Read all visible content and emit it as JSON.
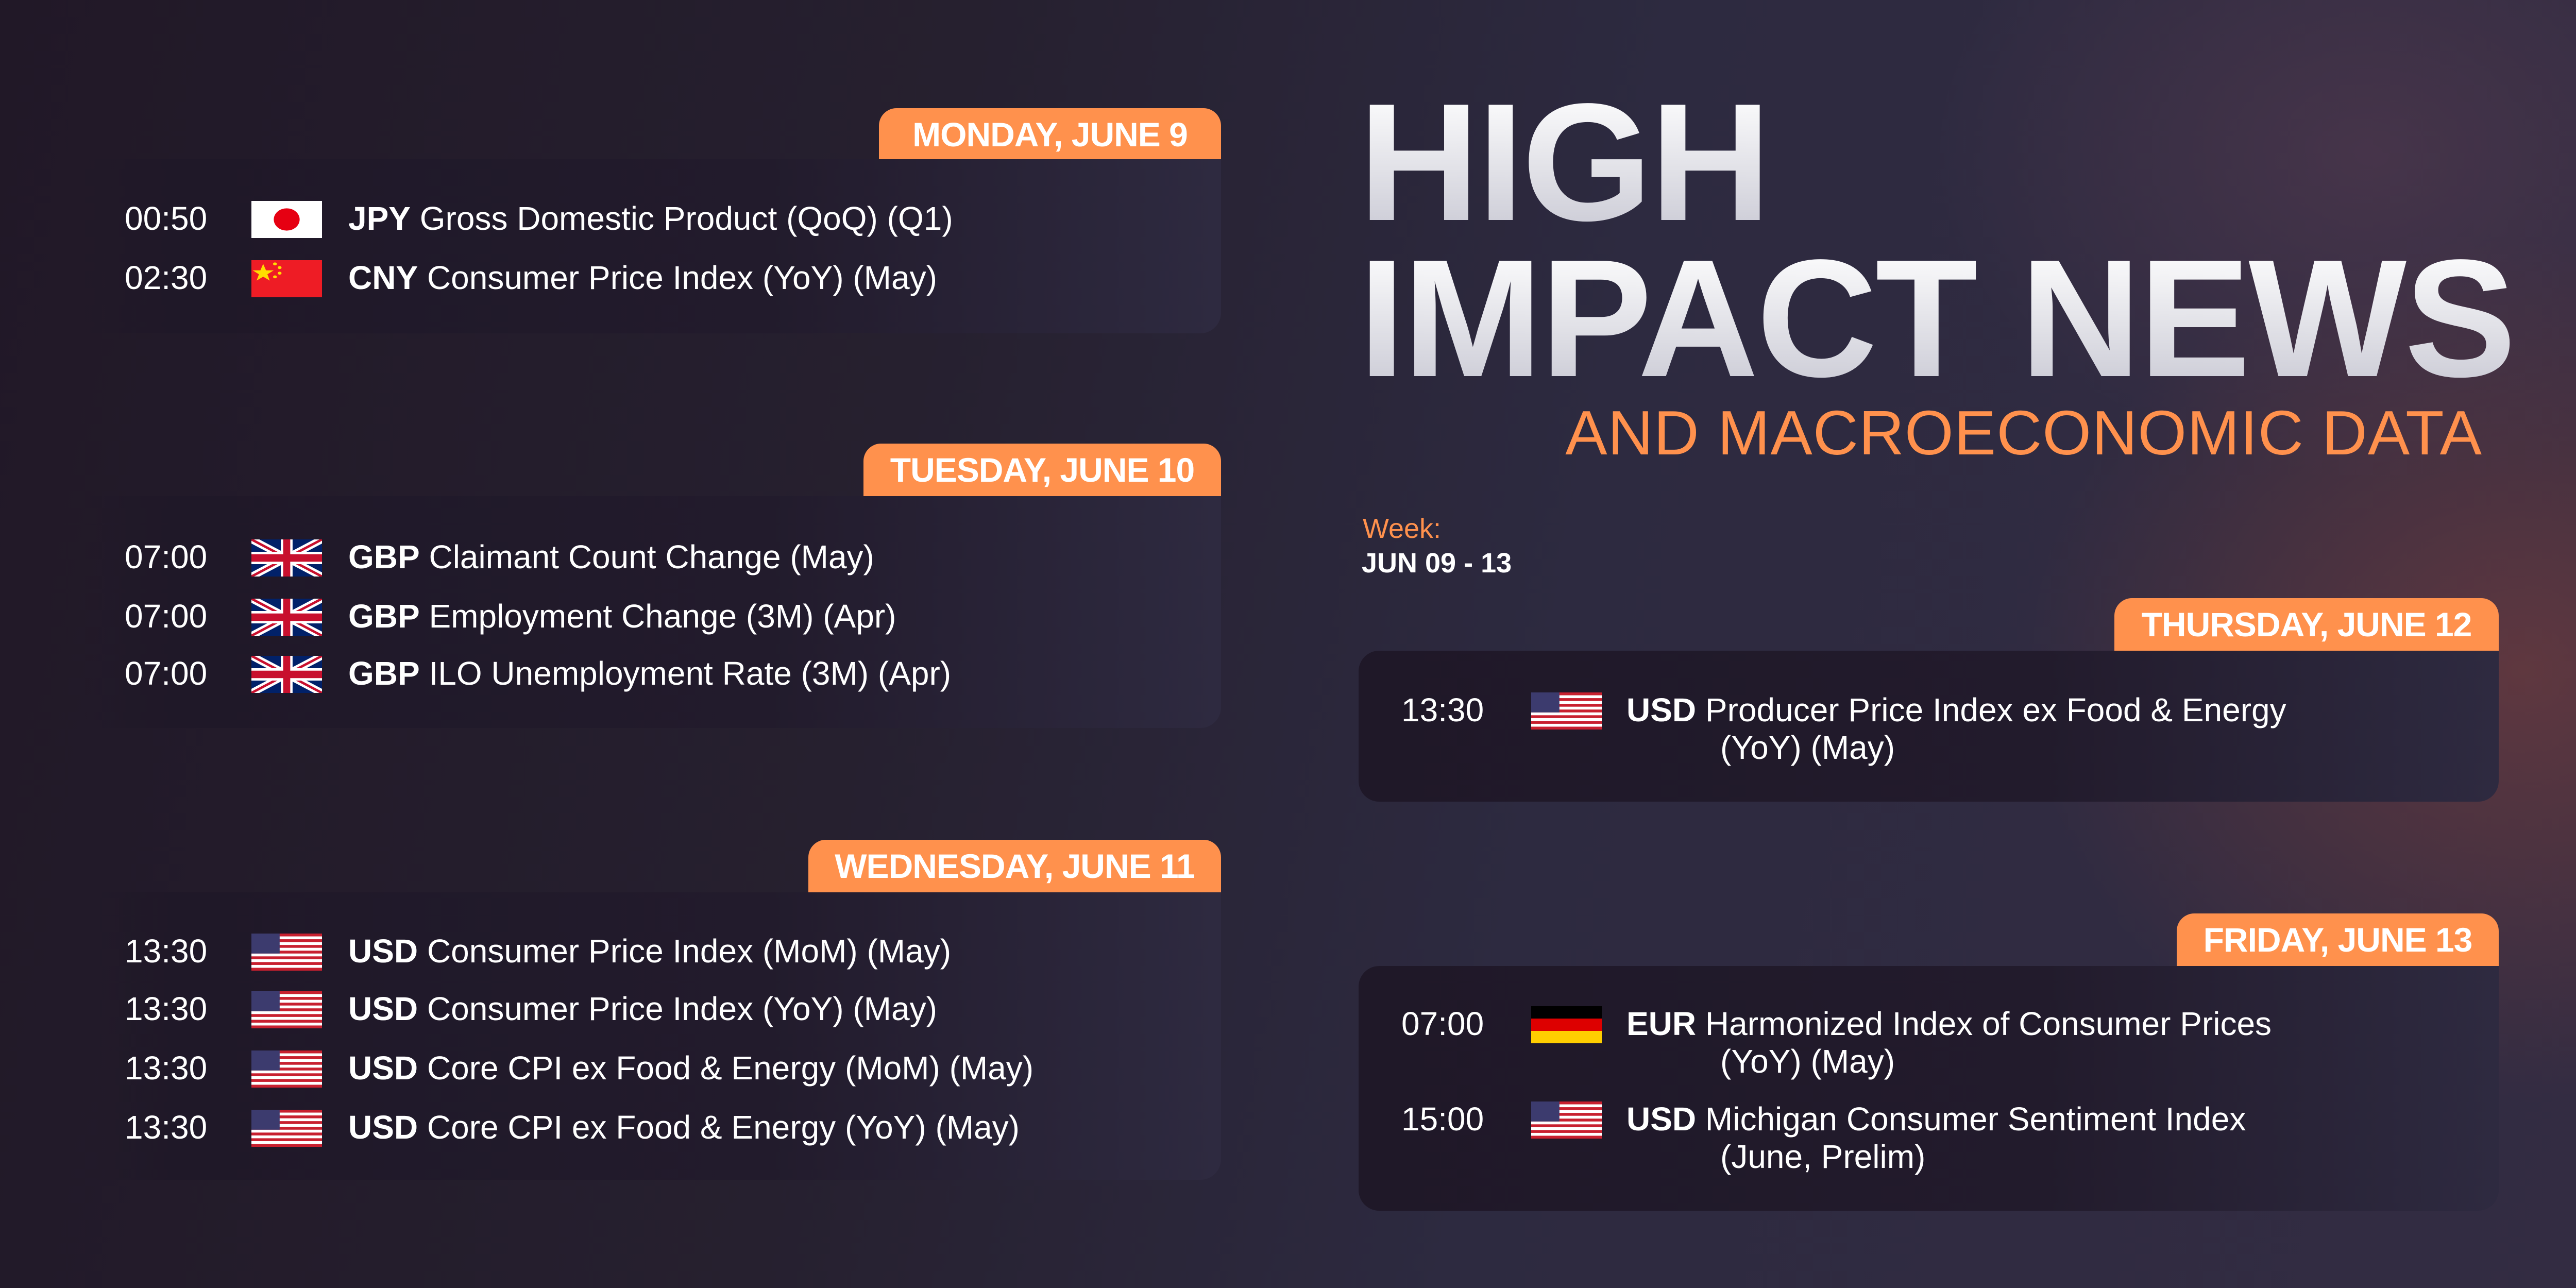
{
  "header": {
    "title_line1": "HIGH",
    "title_line2": "IMPACT NEWS",
    "subtitle": "AND MACROECONOMIC DATA",
    "week_label": "Week:",
    "week_range": "JUN 09 - 13"
  },
  "colors": {
    "accent": "#ff914d",
    "card": "#221b2c",
    "background": "#26202f"
  },
  "days": [
    {
      "label": "MONDAY, JUNE 9",
      "events": [
        {
          "time": "00:50",
          "flag": "japan-flag",
          "currency": "JPY",
          "name": "Gross Domestic Product (QoQ) (Q1)"
        },
        {
          "time": "02:30",
          "flag": "china-flag",
          "currency": "CNY",
          "name": "Consumer Price Index (YoY) (May)"
        }
      ]
    },
    {
      "label": "TUESDAY, JUNE 10",
      "events": [
        {
          "time": "07:00",
          "flag": "uk-flag",
          "currency": "GBP",
          "name": "Claimant Count Change (May)"
        },
        {
          "time": "07:00",
          "flag": "uk-flag",
          "currency": "GBP",
          "name": "Employment Change (3M) (Apr)"
        },
        {
          "time": "07:00",
          "flag": "uk-flag",
          "currency": "GBP",
          "name": "ILO Unemployment Rate (3M) (Apr)"
        }
      ]
    },
    {
      "label": "WEDNESDAY, JUNE 11",
      "events": [
        {
          "time": "13:30",
          "flag": "us-flag",
          "currency": "USD",
          "name": "Consumer Price Index (MoM) (May)"
        },
        {
          "time": "13:30",
          "flag": "us-flag",
          "currency": "USD",
          "name": "Consumer Price Index (YoY) (May)"
        },
        {
          "time": "13:30",
          "flag": "us-flag",
          "currency": "USD",
          "name": "Core CPI ex Food & Energy (MoM) (May)"
        },
        {
          "time": "13:30",
          "flag": "us-flag",
          "currency": "USD",
          "name": "Core CPI ex Food & Energy (YoY) (May)"
        }
      ]
    },
    {
      "label": "THURSDAY, JUNE 12",
      "events": [
        {
          "time": "13:30",
          "flag": "us-flag",
          "currency": "USD",
          "name": "Producer Price Index ex Food & Energy",
          "name_cont": "(YoY) (May)"
        }
      ]
    },
    {
      "label": "FRIDAY, JUNE 13",
      "events": [
        {
          "time": "07:00",
          "flag": "germany-flag",
          "currency": "EUR",
          "name": "Harmonized Index of Consumer Prices",
          "name_cont": "(YoY) (May)"
        },
        {
          "time": "15:00",
          "flag": "us-flag",
          "currency": "USD",
          "name": "Michigan Consumer Sentiment Index",
          "name_cont": "(June, Prelim)"
        }
      ]
    }
  ]
}
